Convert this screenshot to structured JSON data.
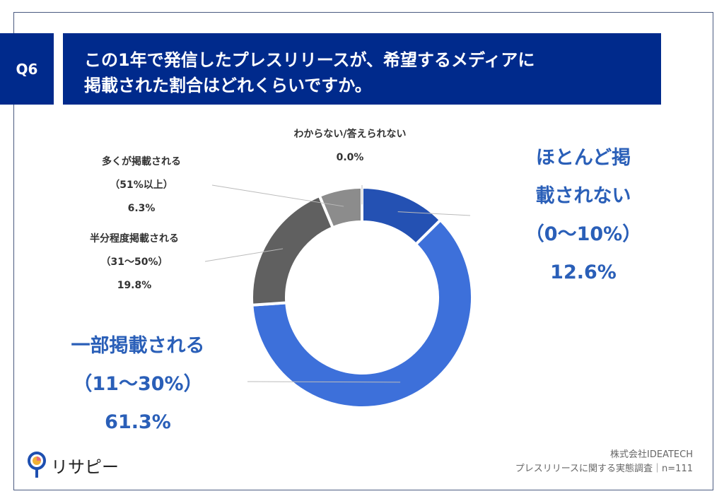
{
  "question": {
    "number": "Q6",
    "title_line1": "この1年で発信したプレスリリースが、希望するメディアに",
    "title_line2": "掲載された割合はどれくらいですか。"
  },
  "chart_data": {
    "type": "pie",
    "donut": true,
    "start": "top, clockwise",
    "slices": [
      {
        "label": "ほとんど掲載されない",
        "range": "（0〜10%）",
        "value": 12.6,
        "value_label": "12.6%",
        "color": "#2451b3"
      },
      {
        "label": "一部掲載される",
        "range": "（11〜30%）",
        "value": 61.3,
        "value_label": "61.3%",
        "color": "#3d70da"
      },
      {
        "label": "半分程度掲載される",
        "range": "（31〜50%）",
        "value": 19.8,
        "value_label": "19.8%",
        "color": "#606060"
      },
      {
        "label": "多くが掲載される",
        "range": "（51%以上）",
        "value": 6.3,
        "value_label": "6.3%",
        "color": "#8c8c8c"
      },
      {
        "label": "わからない/答えられない",
        "range": "",
        "value": 0.0,
        "value_label": "0.0%",
        "color": "#cccccc"
      }
    ]
  },
  "footer": {
    "company": "株式会社IDEATECH",
    "survey": "プレスリリースに関する実態調査｜n=111"
  },
  "logo": {
    "text": "リサピー"
  }
}
